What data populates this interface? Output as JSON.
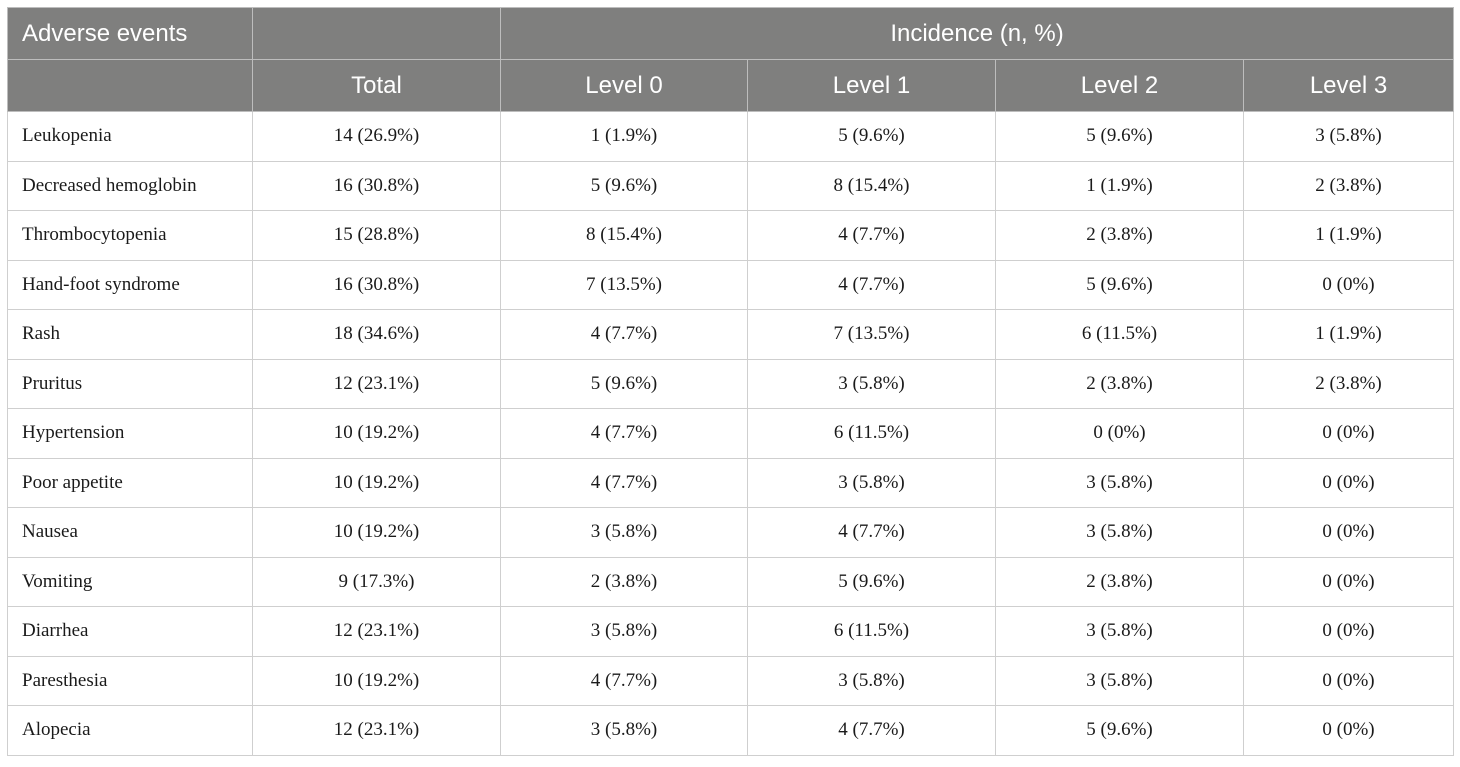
{
  "table": {
    "header": {
      "event_label": "Adverse events",
      "group_label": "Incidence (n, %)",
      "columns": [
        "Total",
        "Level 0",
        "Level 1",
        "Level 2",
        "Level 3"
      ]
    },
    "rows": [
      {
        "event": "Leukopenia",
        "values": [
          "14 (26.9%)",
          "1 (1.9%)",
          "5 (9.6%)",
          "5 (9.6%)",
          "3 (5.8%)"
        ]
      },
      {
        "event": "Decreased hemoglobin",
        "values": [
          "16 (30.8%)",
          "5 (9.6%)",
          "8 (15.4%)",
          "1 (1.9%)",
          "2 (3.8%)"
        ]
      },
      {
        "event": "Thrombocytopenia",
        "values": [
          "15 (28.8%)",
          "8 (15.4%)",
          "4 (7.7%)",
          "2 (3.8%)",
          "1 (1.9%)"
        ]
      },
      {
        "event": "Hand-foot syndrome",
        "values": [
          "16 (30.8%)",
          "7 (13.5%)",
          "4 (7.7%)",
          "5 (9.6%)",
          "0 (0%)"
        ]
      },
      {
        "event": "Rash",
        "values": [
          "18 (34.6%)",
          "4 (7.7%)",
          "7 (13.5%)",
          "6 (11.5%)",
          "1 (1.9%)"
        ]
      },
      {
        "event": "Pruritus",
        "values": [
          "12 (23.1%)",
          "5 (9.6%)",
          "3 (5.8%)",
          "2 (3.8%)",
          "2 (3.8%)"
        ]
      },
      {
        "event": "Hypertension",
        "values": [
          "10 (19.2%)",
          "4 (7.7%)",
          "6 (11.5%)",
          "0 (0%)",
          "0 (0%)"
        ]
      },
      {
        "event": "Poor appetite",
        "values": [
          "10 (19.2%)",
          "4 (7.7%)",
          "3 (5.8%)",
          "3 (5.8%)",
          "0 (0%)"
        ]
      },
      {
        "event": "Nausea",
        "values": [
          "10 (19.2%)",
          "3 (5.8%)",
          "4 (7.7%)",
          "3 (5.8%)",
          "0 (0%)"
        ]
      },
      {
        "event": "Vomiting",
        "values": [
          "9 (17.3%)",
          "2 (3.8%)",
          "5 (9.6%)",
          "2 (3.8%)",
          "0 (0%)"
        ]
      },
      {
        "event": "Diarrhea",
        "values": [
          "12 (23.1%)",
          "3 (5.8%)",
          "6 (11.5%)",
          "3 (5.8%)",
          "0 (0%)"
        ]
      },
      {
        "event": "Paresthesia",
        "values": [
          "10 (19.2%)",
          "4 (7.7%)",
          "3 (5.8%)",
          "3 (5.8%)",
          "0 (0%)"
        ]
      },
      {
        "event": "Alopecia",
        "values": [
          "12 (23.1%)",
          "3 (5.8%)",
          "4 (7.7%)",
          "5 (9.6%)",
          "0 (0%)"
        ]
      }
    ]
  },
  "colors": {
    "header_bg": "#7f7f7e",
    "header_text": "#ffffff",
    "grid_line": "#cfcfcf"
  }
}
